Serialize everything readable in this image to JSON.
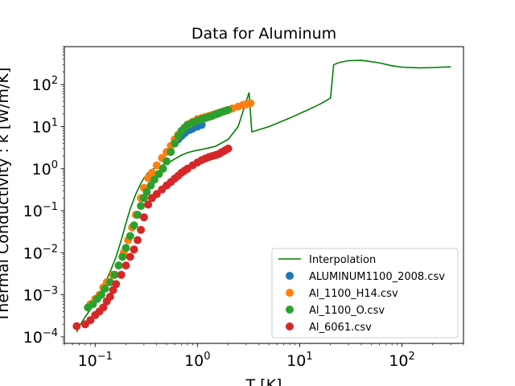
{
  "chart_data": {
    "type": "scatter",
    "title": "Data for Aluminum",
    "xlabel": "T [K]",
    "ylabel": "Thermal Conductivity : k [W/m/K]",
    "xscale": "log",
    "yscale": "log",
    "xlim": [
      0.05,
      400
    ],
    "ylim": [
      7e-05,
      800
    ],
    "x_ticks": [
      {
        "value": 0.1,
        "base": "10",
        "exp": "−1"
      },
      {
        "value": 1,
        "base": "10",
        "exp": "0"
      },
      {
        "value": 10,
        "base": "10",
        "exp": "1"
      },
      {
        "value": 100,
        "base": "10",
        "exp": "2"
      }
    ],
    "y_ticks": [
      {
        "value": 0.0001,
        "base": "10",
        "exp": "−4"
      },
      {
        "value": 0.001,
        "base": "10",
        "exp": "−3"
      },
      {
        "value": 0.01,
        "base": "10",
        "exp": "−2"
      },
      {
        "value": 0.1,
        "base": "10",
        "exp": "−1"
      },
      {
        "value": 1,
        "base": "10",
        "exp": "0"
      },
      {
        "value": 10,
        "base": "10",
        "exp": "1"
      },
      {
        "value": 100,
        "base": "10",
        "exp": "2"
      }
    ],
    "grid": false,
    "legend_position": "lower-right",
    "interpolation": {
      "name": "Interpolation",
      "color": "#008000",
      "x": [
        0.066,
        0.07,
        0.08,
        0.09,
        0.1,
        0.12,
        0.14,
        0.16,
        0.18,
        0.2,
        0.22,
        0.25,
        0.28,
        0.3,
        0.33,
        0.36,
        0.4,
        0.45,
        0.5,
        0.55,
        0.6,
        0.7,
        0.8,
        0.9,
        1.0,
        1.2,
        1.5,
        2.0,
        2.5,
        3.0,
        3.2,
        3.4,
        5,
        8,
        12,
        16,
        20,
        21.5,
        25,
        30,
        40,
        60,
        80,
        100,
        150,
        200,
        300
      ],
      "y": [
        0.00013,
        0.00018,
        0.0003,
        0.00045,
        0.0007,
        0.0015,
        0.0035,
        0.008,
        0.02,
        0.05,
        0.11,
        0.25,
        0.45,
        0.6,
        0.8,
        0.95,
        1.1,
        1.2,
        1.35,
        1.5,
        1.7,
        2.1,
        2.4,
        2.6,
        2.75,
        3.0,
        3.4,
        5.0,
        10,
        40,
        65,
        7.5,
        10,
        16,
        25,
        35,
        48,
        300,
        340,
        370,
        380,
        330,
        280,
        260,
        250,
        255,
        265
      ]
    },
    "series": [
      {
        "name": "ALUMINUM1100_2008.csv",
        "color": "#1f77b4",
        "x": [
          0.6,
          0.65,
          0.7,
          0.75,
          0.8,
          0.85,
          0.9,
          1.0,
          1.1
        ],
        "y": [
          4.0,
          5.0,
          6.0,
          7.0,
          8.0,
          8.5,
          9.0,
          10.0,
          11.0
        ]
      },
      {
        "name": "Al_1100_H14.csv",
        "color": "#ff7f0e",
        "x": [
          0.09,
          0.1,
          0.11,
          0.12,
          0.13,
          0.15,
          0.17,
          0.19,
          0.21,
          0.23,
          0.25,
          0.28,
          0.3,
          0.33,
          0.36,
          0.4,
          0.45,
          0.5,
          0.55,
          0.6,
          0.65,
          0.7,
          0.75,
          0.8,
          0.85,
          0.9,
          1.0,
          1.1,
          1.2,
          1.3,
          1.4,
          1.5,
          1.6,
          1.8,
          2.0,
          2.2,
          2.5,
          2.8,
          3.0,
          3.3
        ],
        "y": [
          0.0006,
          0.0008,
          0.001,
          0.0015,
          0.002,
          0.003,
          0.005,
          0.01,
          0.02,
          0.04,
          0.08,
          0.2,
          0.35,
          0.6,
          0.8,
          1.2,
          1.8,
          2.5,
          3.5,
          5.0,
          6.5,
          8.0,
          9.5,
          11.0,
          12.0,
          13.0,
          15.0,
          16.0,
          17.0,
          18.0,
          19.0,
          20.0,
          21.0,
          23.0,
          25.0,
          27.0,
          30.0,
          33.0,
          34.0,
          36.0
        ]
      },
      {
        "name": "Al_1100_O.csv",
        "color": "#2ca02c",
        "x": [
          0.085,
          0.095,
          0.105,
          0.115,
          0.125,
          0.14,
          0.155,
          0.17,
          0.185,
          0.2,
          0.22,
          0.24,
          0.26,
          0.28,
          0.3,
          0.32,
          0.35,
          0.38,
          0.42,
          0.46,
          0.5,
          0.55,
          0.6,
          0.65,
          0.7,
          0.75,
          0.8,
          0.9,
          1.0,
          1.1,
          1.2,
          1.3,
          1.4,
          1.5,
          1.6,
          1.7,
          1.8,
          1.9,
          2.0
        ],
        "y": [
          0.0005,
          0.0006,
          0.0008,
          0.001,
          0.0014,
          0.002,
          0.003,
          0.005,
          0.008,
          0.013,
          0.025,
          0.045,
          0.08,
          0.13,
          0.2,
          0.28,
          0.4,
          0.55,
          0.75,
          1.0,
          1.5,
          2.5,
          4.0,
          6.0,
          8.0,
          9.5,
          11.0,
          12.5,
          14.0,
          15.0,
          16.0,
          17.0,
          18.0,
          19.5,
          20.5,
          22.0,
          23.0,
          24.0,
          25.0
        ]
      },
      {
        "name": "Al_6061.csv",
        "color": "#d62728",
        "x": [
          0.066,
          0.08,
          0.09,
          0.1,
          0.11,
          0.12,
          0.13,
          0.14,
          0.15,
          0.16,
          0.18,
          0.2,
          0.22,
          0.24,
          0.26,
          0.28,
          0.3,
          0.33,
          0.36,
          0.4,
          0.45,
          0.5,
          0.55,
          0.6,
          0.65,
          0.7,
          0.75,
          0.8,
          0.9,
          1.0,
          1.1,
          1.2,
          1.3,
          1.4,
          1.5,
          1.6,
          1.7,
          1.8,
          1.9,
          2.0
        ],
        "y": [
          0.00018,
          0.0002,
          0.00025,
          0.00033,
          0.0004,
          0.0005,
          0.0007,
          0.0009,
          0.0013,
          0.0018,
          0.003,
          0.005,
          0.008,
          0.012,
          0.02,
          0.035,
          0.07,
          0.14,
          0.2,
          0.25,
          0.32,
          0.4,
          0.48,
          0.58,
          0.68,
          0.8,
          0.9,
          1.0,
          1.2,
          1.4,
          1.6,
          1.75,
          1.9,
          2.0,
          2.1,
          2.2,
          2.4,
          2.6,
          2.8,
          3.0
        ]
      }
    ]
  }
}
